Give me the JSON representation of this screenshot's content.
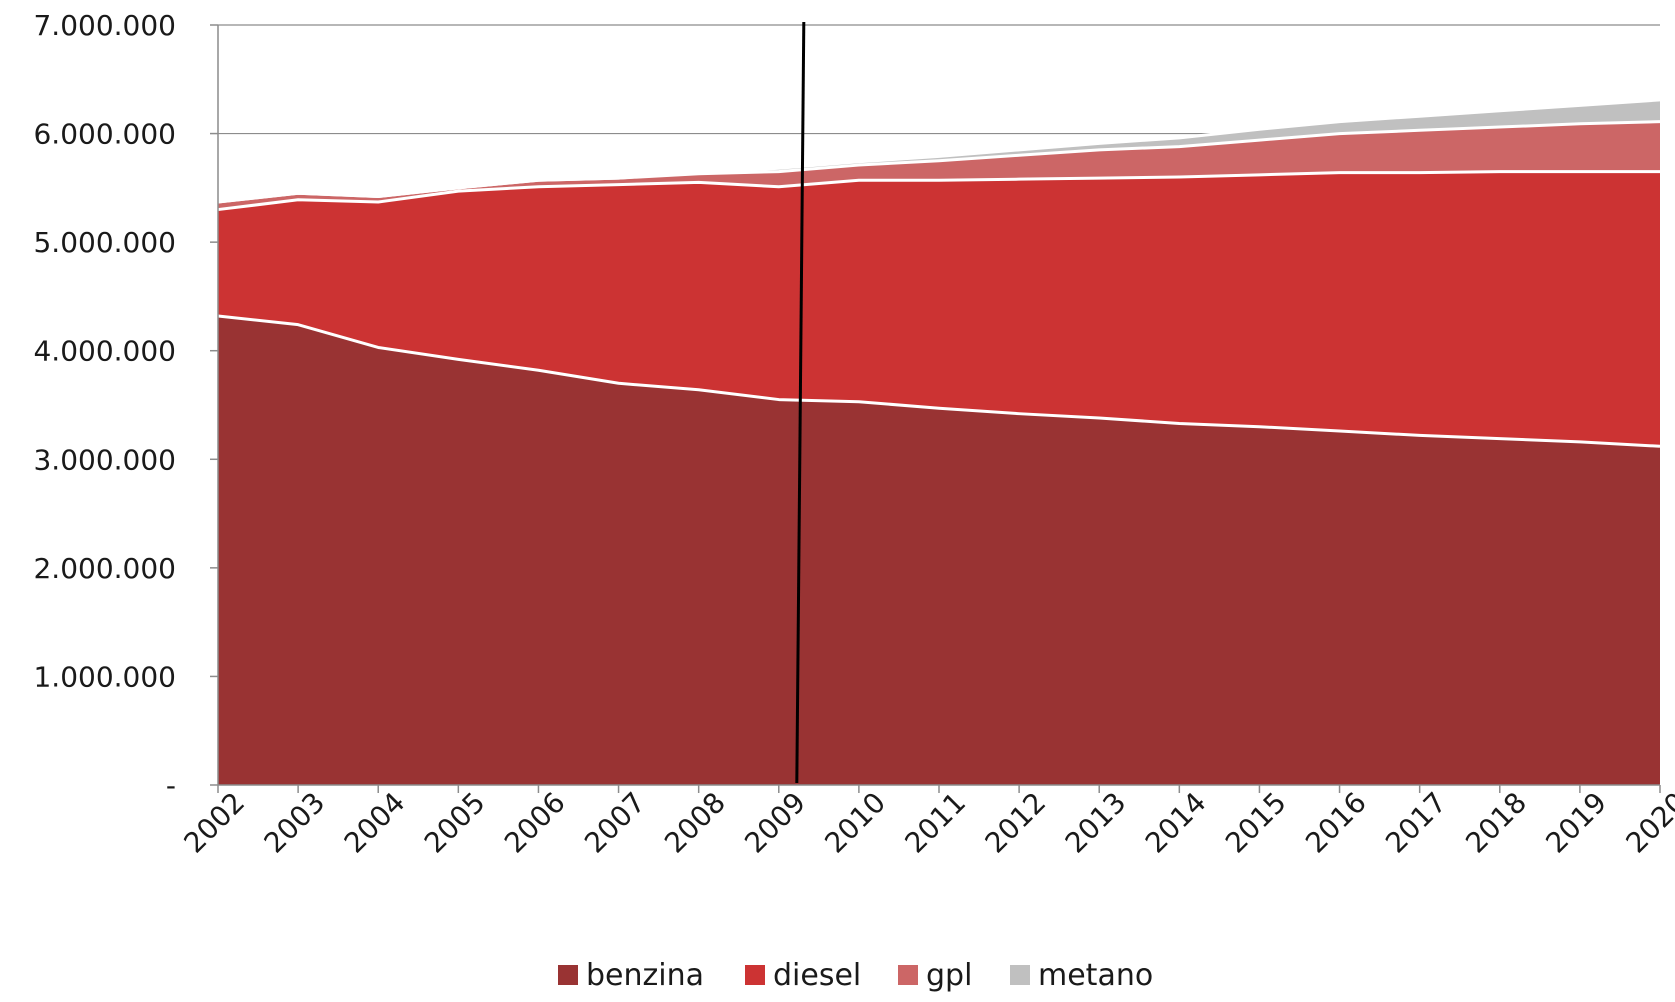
{
  "chart_data": {
    "type": "area",
    "stacked": true,
    "title": "",
    "xlabel": "",
    "ylabel": "",
    "x": [
      "2002",
      "2003",
      "2004",
      "2005",
      "2006",
      "2007",
      "2008",
      "2009",
      "2010",
      "2011",
      "2012",
      "2013",
      "2014",
      "2015",
      "2016",
      "2017",
      "2018",
      "2019",
      "2020"
    ],
    "ylim": [
      0,
      7000000
    ],
    "y_ticks": [
      0,
      1000000,
      2000000,
      3000000,
      4000000,
      5000000,
      6000000,
      7000000
    ],
    "y_tick_labels": [
      "-",
      "1.000.000",
      "2.000.000",
      "3.000.000",
      "4.000.000",
      "5.000.000",
      "6.000.000",
      "7.000.000"
    ],
    "grid": "horizontal",
    "legend_position": "bottom",
    "series": [
      {
        "name": "benzina",
        "color": "#993333",
        "values": [
          4320000,
          4240000,
          4030000,
          3920000,
          3820000,
          3700000,
          3640000,
          3550000,
          3530000,
          3470000,
          3420000,
          3380000,
          3330000,
          3300000,
          3260000,
          3220000,
          3190000,
          3160000,
          3120000
        ]
      },
      {
        "name": "diesel",
        "color": "#cc3333",
        "values": [
          980000,
          1150000,
          1340000,
          1550000,
          1690000,
          1830000,
          1910000,
          1960000,
          2040000,
          2100000,
          2160000,
          2210000,
          2270000,
          2320000,
          2380000,
          2420000,
          2460000,
          2490000,
          2530000
        ]
      },
      {
        "name": "gpl",
        "color": "#cc6666",
        "values": [
          70000,
          60000,
          50000,
          30000,
          60000,
          60000,
          80000,
          140000,
          140000,
          180000,
          220000,
          260000,
          280000,
          320000,
          360000,
          390000,
          410000,
          440000,
          460000
        ]
      },
      {
        "name": "metano",
        "color": "#c0c0c0",
        "values": [
          0,
          0,
          0,
          0,
          0,
          0,
          10000,
          30000,
          30000,
          40000,
          50000,
          60000,
          80000,
          100000,
          110000,
          130000,
          150000,
          170000,
          200000
        ]
      }
    ],
    "annotations": [
      {
        "type": "vertical-line",
        "x": "2009",
        "x_offset_years": 0.25
      }
    ]
  }
}
